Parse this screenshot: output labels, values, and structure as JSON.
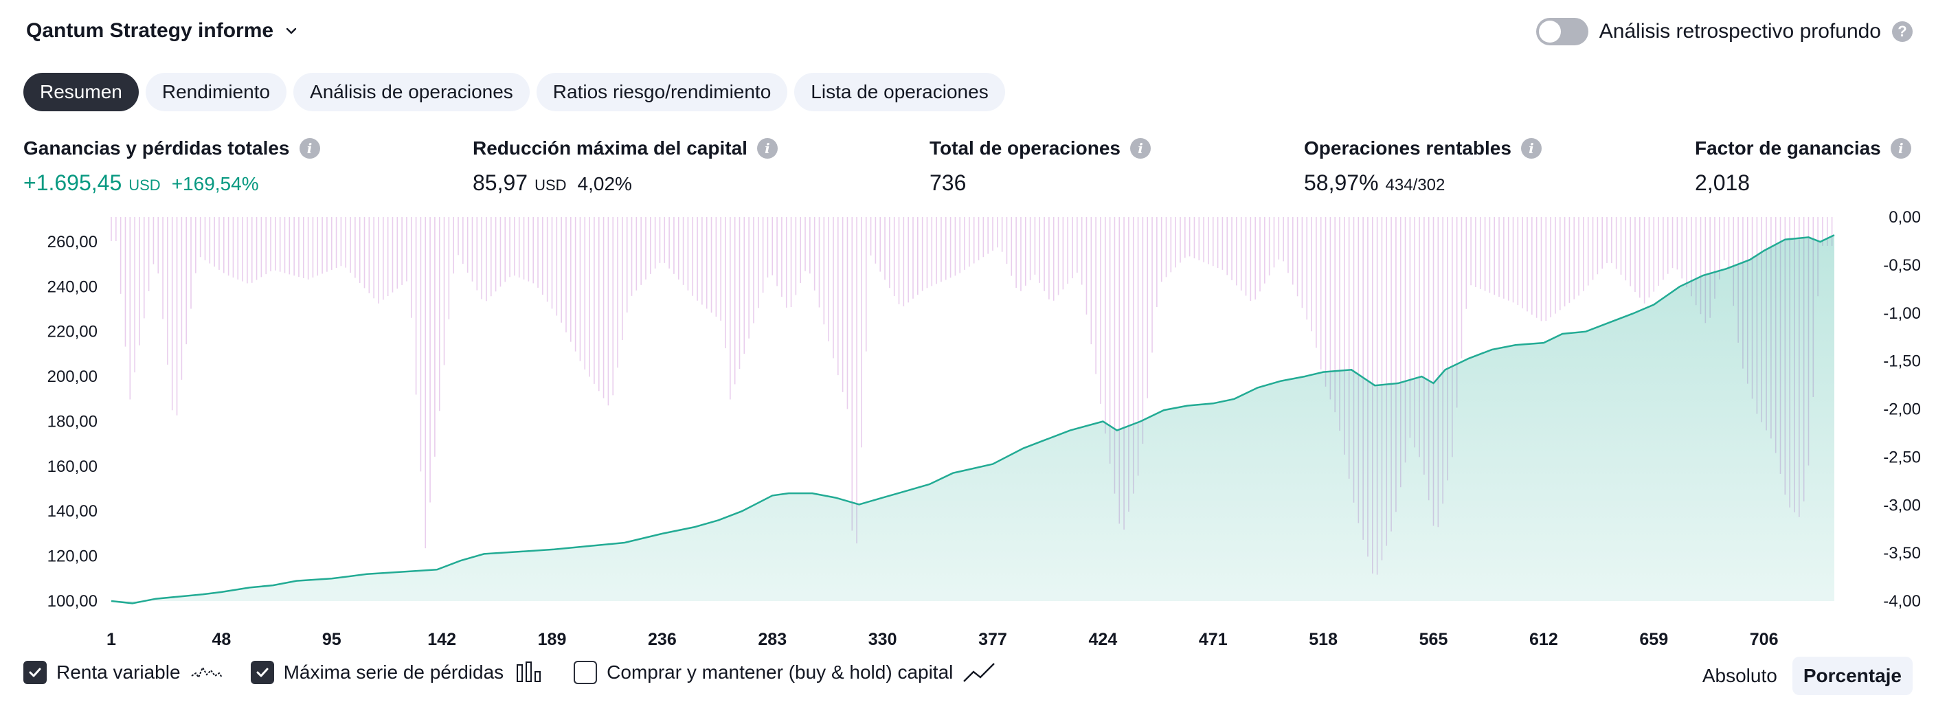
{
  "header": {
    "title": "Qantum Strategy informe",
    "title_icon": "chevron-down-icon"
  },
  "retro": {
    "label": "Análisis retrospectivo profundo",
    "enabled": false,
    "help_icon": "question-icon",
    "help_glyph": "?"
  },
  "tabs": [
    {
      "label": "Resumen",
      "active": true
    },
    {
      "label": "Rendimiento",
      "active": false
    },
    {
      "label": "Análisis de operaciones",
      "active": false
    },
    {
      "label": "Ratios riesgo/rendimiento",
      "active": false
    },
    {
      "label": "Lista de operaciones",
      "active": false
    }
  ],
  "metrics": {
    "info_glyph": "i",
    "pnl": {
      "label": "Ganancias y pérdidas totales",
      "value": "+1.695,45",
      "unit": "USD",
      "secondary": "+169,54%"
    },
    "drawdown": {
      "label": "Reducción máxima del capital",
      "value": "85,97",
      "unit": "USD",
      "secondary": "4,02%"
    },
    "trades": {
      "label": "Total de operaciones",
      "value": "736"
    },
    "profitable": {
      "label": "Operaciones rentables",
      "value": "58,97%",
      "secondary": "434/302"
    },
    "profit_factor": {
      "label": "Factor de ganancias",
      "value": "2,018"
    }
  },
  "chart_data": {
    "type": "area",
    "x_ticks": [
      "1",
      "48",
      "95",
      "142",
      "189",
      "236",
      "283",
      "330",
      "377",
      "424",
      "471",
      "518",
      "565",
      "612",
      "659",
      "706"
    ],
    "x_range": [
      1,
      736
    ],
    "left_axis": {
      "ticks": [
        "260,00",
        "240,00",
        "220,00",
        "200,00",
        "180,00",
        "160,00",
        "140,00",
        "120,00",
        "100,00"
      ],
      "range": [
        100,
        271
      ]
    },
    "right_axis": {
      "ticks": [
        "0,00",
        "-0,50",
        "-1,00",
        "-1,50",
        "-2,00",
        "-2,50",
        "-3,00",
        "-3,50",
        "-4,00"
      ],
      "range": [
        -4.0,
        0.0
      ]
    },
    "series": [
      {
        "name": "Renta variable",
        "axis": "left",
        "color": "#22ab94",
        "x": [
          1,
          10,
          20,
          30,
          40,
          48,
          60,
          70,
          80,
          95,
          110,
          125,
          140,
          150,
          160,
          175,
          190,
          200,
          210,
          220,
          236,
          250,
          260,
          270,
          283,
          290,
          300,
          310,
          320,
          330,
          340,
          350,
          360,
          377,
          390,
          400,
          410,
          424,
          430,
          440,
          450,
          460,
          471,
          480,
          490,
          500,
          510,
          518,
          530,
          540,
          550,
          560,
          565,
          570,
          580,
          590,
          600,
          612,
          620,
          630,
          640,
          650,
          659,
          670,
          680,
          690,
          700,
          706,
          715,
          725,
          730,
          736
        ],
        "values": [
          100,
          99,
          101,
          102,
          103,
          104,
          106,
          107,
          109,
          110,
          112,
          113,
          114,
          118,
          121,
          122,
          123,
          124,
          125,
          126,
          130,
          133,
          136,
          140,
          147,
          148,
          148,
          146,
          143,
          146,
          149,
          152,
          157,
          161,
          168,
          172,
          176,
          180,
          176,
          180,
          185,
          187,
          188,
          190,
          195,
          198,
          200,
          202,
          203,
          196,
          197,
          200,
          197,
          203,
          208,
          212,
          214,
          215,
          219,
          220,
          224,
          228,
          232,
          240,
          245,
          248,
          252,
          256,
          261,
          262,
          260,
          263
        ]
      },
      {
        "name": "Máxima serie de pérdidas",
        "axis": "right",
        "color": "#e1bee7",
        "x": [
          3,
          9,
          20,
          28,
          38,
          50,
          60,
          70,
          85,
          100,
          115,
          128,
          135,
          148,
          160,
          172,
          182,
          193,
          202,
          214,
          222,
          236,
          250,
          262,
          265,
          282,
          290,
          298,
          315,
          318,
          325,
          338,
          348,
          362,
          380,
          388,
          395,
          402,
          414,
          424,
          432,
          440,
          448,
          460,
          475,
          488,
          500,
          514,
          518,
          524,
          532,
          540,
          548,
          555,
          560,
          566,
          573,
          580,
          590,
          600,
          612,
          628,
          640,
          655,
          668,
          682,
          690,
          696,
          703,
          710,
          716,
          722,
          726,
          730
        ],
        "values": [
          -0.25,
          -1.9,
          -0.35,
          -2.25,
          -0.4,
          -0.6,
          -0.7,
          -0.55,
          -0.65,
          -0.5,
          -0.9,
          -0.65,
          -3.45,
          -0.35,
          -0.9,
          -0.6,
          -0.7,
          -1.1,
          -1.55,
          -2.0,
          -0.85,
          -0.45,
          -0.85,
          -1.1,
          -1.9,
          -0.55,
          -1.0,
          -0.5,
          -2.0,
          -3.9,
          -0.4,
          -0.95,
          -0.75,
          -0.6,
          -0.3,
          -0.8,
          -0.6,
          -0.9,
          -0.55,
          -2.1,
          -3.35,
          -2.6,
          -0.7,
          -0.4,
          -0.55,
          -0.9,
          -0.4,
          -1.25,
          -1.7,
          -2.1,
          -3.1,
          -3.8,
          -3.2,
          -2.3,
          -2.55,
          -3.35,
          -2.5,
          -0.7,
          -0.8,
          -0.9,
          -1.1,
          -0.8,
          -0.45,
          -0.9,
          -0.5,
          -1.15,
          -0.35,
          -1.5,
          -2.05,
          -2.35,
          -3.0,
          -3.15,
          -2.4,
          -0.3
        ]
      },
      {
        "name": "Comprar y mantener (buy & hold) capital",
        "axis": "left",
        "visible": false
      }
    ]
  },
  "legend": [
    {
      "label": "Renta variable",
      "checked": true,
      "icon": "equity-line-icon"
    },
    {
      "label": "Máxima serie de pérdidas",
      "checked": true,
      "icon": "bars-icon"
    },
    {
      "label": "Comprar y mantener (buy & hold) capital",
      "checked": false,
      "icon": "trend-line-icon"
    }
  ],
  "views": [
    {
      "label": "Absoluto",
      "active": false
    },
    {
      "label": "Porcentaje",
      "active": true
    }
  ]
}
